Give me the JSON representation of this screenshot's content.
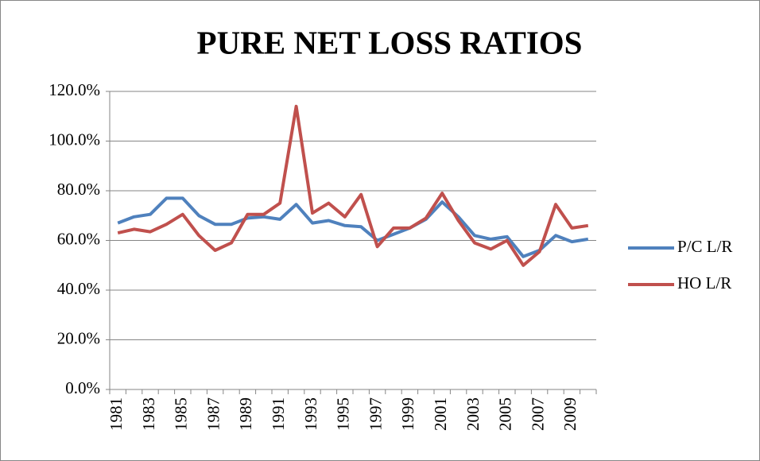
{
  "chart_data": {
    "type": "line",
    "title": "PURE NET LOSS RATIOS",
    "categories": [
      "1981",
      null,
      "1983",
      null,
      "1985",
      null,
      "1987",
      null,
      "1989",
      null,
      "1991",
      null,
      "1993",
      null,
      "1995",
      null,
      "1997",
      null,
      "1999",
      null,
      "2001",
      null,
      "2003",
      null,
      "2005",
      null,
      "2007",
      null,
      "2009",
      null
    ],
    "series": [
      {
        "name": "P/C L/R",
        "color": "#4f81bd",
        "values": [
          67,
          69.5,
          70.5,
          77,
          77,
          70,
          66.5,
          66.5,
          69,
          69.5,
          68.5,
          74.5,
          67,
          68,
          66,
          65.5,
          60,
          62.5,
          65,
          68.5,
          75.5,
          69.5,
          62,
          60.5,
          61.5,
          53.5,
          56,
          62,
          59.5,
          60.5
        ]
      },
      {
        "name": "HO L/R",
        "color": "#c0504d",
        "values": [
          63,
          64.5,
          63.5,
          66.5,
          70.5,
          62,
          56,
          59,
          70.5,
          70.5,
          75,
          114,
          71,
          75,
          69.5,
          78.5,
          57.5,
          65,
          65,
          69,
          79,
          68,
          59,
          56.5,
          60,
          50,
          55.5,
          74.5,
          65,
          66
        ]
      }
    ],
    "ylim": [
      0,
      120
    ],
    "yticks": [
      {
        "value": 0,
        "label": "0.0%"
      },
      {
        "value": 20,
        "label": "20.0%"
      },
      {
        "value": 40,
        "label": "40.0%"
      },
      {
        "value": 60,
        "label": "60.0%"
      },
      {
        "value": 80,
        "label": "80.0%"
      },
      {
        "value": 100,
        "label": "100.0%"
      },
      {
        "value": 120,
        "label": "120.0%"
      }
    ],
    "grid": true,
    "legend": "right"
  }
}
